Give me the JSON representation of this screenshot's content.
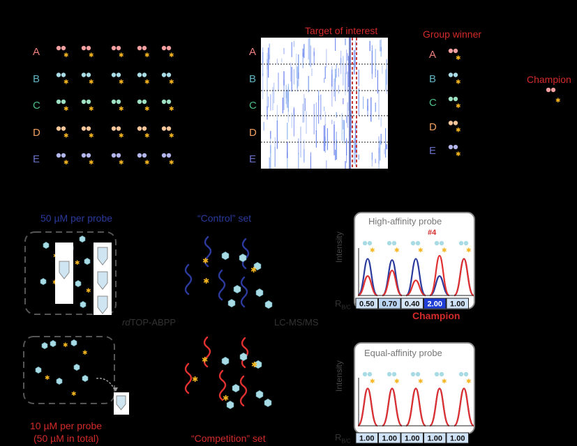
{
  "rows": [
    {
      "letter": "A",
      "color": "#f08080",
      "dot": "#f5a0a0"
    },
    {
      "letter": "B",
      "color": "#5fb3c0",
      "dot": "#a8dbe4"
    },
    {
      "letter": "C",
      "color": "#4fbf8a",
      "dot": "#9ee0c2"
    },
    {
      "letter": "D",
      "color": "#f0a060",
      "dot": "#f6c69a"
    },
    {
      "letter": "E",
      "color": "#6a6fc6",
      "dot": "#b3b6ea"
    }
  ],
  "heatmap": {
    "label": "Target of interest"
  },
  "group_winner": {
    "title": "Group winner"
  },
  "champion_top": "Champion",
  "panel_b": {
    "left_top_label": "50 µM per probe",
    "left_bottom_label_1": "10 µM per probe",
    "left_bottom_label_2": "(50 µM in total)",
    "control_label": "“Control” set",
    "competition_label": "“Competition” set",
    "method_left": "rdTOP-ABPP",
    "method_left_italic": "rd",
    "method_left_rest": "TOP-ABPP",
    "method_right": "LC-MS/MS"
  },
  "high_affinity": {
    "title": "High-affinity probe",
    "marker": "#4",
    "ylabel": "Intensity",
    "ratio_label": "R",
    "ratio_sub": "B/C",
    "ratios": [
      "0.50",
      "0.70",
      "0.40",
      "2.00",
      "1.00"
    ],
    "champion": "Champion",
    "cell_colors": [
      "#cfe2f6",
      "#b9d5f2",
      "#d7e7f8",
      "#1f3fd6",
      "#cfe2f6"
    ],
    "peaks_blue": [
      0.85,
      0.82,
      0.85,
      0.45,
      0.85
    ],
    "peaks_red": [
      0.45,
      0.58,
      0.35,
      0.92,
      0.85
    ]
  },
  "equal_affinity": {
    "title": "Equal-affinity probe",
    "ylabel": "Intensity",
    "ratio_label": "R",
    "ratio_sub": "B/C",
    "ratios": [
      "1.00",
      "1.00",
      "1.00",
      "1.00",
      "1.00"
    ],
    "cell_colors": [
      "#cfe2f6",
      "#cfe2f6",
      "#cfe2f6",
      "#cfe2f6",
      "#cfe2f6"
    ],
    "peaks_blue": [
      0.85,
      0.85,
      0.85,
      0.85,
      0.85
    ],
    "peaks_red": [
      0.85,
      0.85,
      0.85,
      0.85,
      0.85
    ]
  },
  "colors": {
    "star": "#f5b520",
    "control": "#2b3a9c",
    "competition": "#e03030",
    "hex": "#a8dbe4"
  }
}
